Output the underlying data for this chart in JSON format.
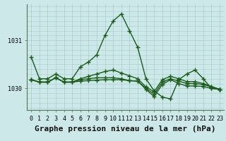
{
  "xlabel": "Graphe pression niveau de la mer (hPa)",
  "ylabel": "",
  "background_color": "#cce8e8",
  "grid_color": "#aacccc",
  "line_color": "#1a5c1a",
  "hours": [
    0,
    1,
    2,
    3,
    4,
    5,
    6,
    7,
    8,
    9,
    10,
    11,
    12,
    13,
    14,
    15,
    16,
    17,
    18,
    19,
    20,
    21,
    22,
    23
  ],
  "series": [
    [
      1030.65,
      1030.2,
      1030.2,
      1030.3,
      1030.2,
      1030.2,
      1030.45,
      1030.55,
      1030.7,
      1031.1,
      1031.4,
      1031.55,
      1031.2,
      1030.85,
      1030.2,
      1029.95,
      1029.82,
      1029.78,
      1030.18,
      1030.3,
      1030.38,
      1030.2,
      1030.0,
      1029.98
    ],
    [
      1030.18,
      1030.13,
      1030.13,
      1030.22,
      1030.13,
      1030.13,
      1030.15,
      1030.16,
      1030.17,
      1030.18,
      1030.18,
      1030.18,
      1030.16,
      1030.15,
      1029.98,
      1029.83,
      1030.08,
      1030.18,
      1030.1,
      1030.05,
      1030.05,
      1030.04,
      1030.0,
      1029.98
    ],
    [
      1030.18,
      1030.13,
      1030.13,
      1030.22,
      1030.13,
      1030.13,
      1030.18,
      1030.2,
      1030.22,
      1030.22,
      1030.22,
      1030.2,
      1030.16,
      1030.15,
      1030.0,
      1029.88,
      1030.13,
      1030.2,
      1030.15,
      1030.1,
      1030.1,
      1030.08,
      1030.03,
      1029.98
    ],
    [
      1030.18,
      1030.13,
      1030.13,
      1030.22,
      1030.13,
      1030.13,
      1030.2,
      1030.25,
      1030.3,
      1030.35,
      1030.38,
      1030.32,
      1030.26,
      1030.2,
      1030.03,
      1029.93,
      1030.18,
      1030.25,
      1030.2,
      1030.14,
      1030.14,
      1030.1,
      1030.04,
      1029.98
    ]
  ],
  "yticks": [
    1030,
    1031
  ],
  "ylim": [
    1029.55,
    1031.75
  ],
  "xlim": [
    -0.5,
    23.5
  ],
  "marker": "+",
  "markersize": 4,
  "linewidth": 1.0,
  "markeredgewidth": 1.0,
  "xlabel_fontsize": 8,
  "tick_fontsize": 6,
  "ytick_fontsize": 6
}
